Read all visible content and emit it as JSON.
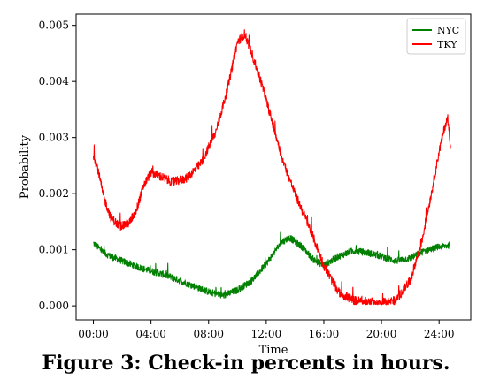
{
  "caption": "Figure 3: Check-in percents in hours.",
  "chart_data": {
    "type": "line",
    "title": "",
    "xlabel": "Time",
    "ylabel": "Probability",
    "x_tick_labels": [
      "00:00",
      "04:00",
      "08:00",
      "12:00",
      "16:00",
      "20:00",
      "24:00"
    ],
    "x_tick_values": [
      0,
      4,
      8,
      12,
      16,
      20,
      24
    ],
    "xlim": [
      -1.2,
      26.2
    ],
    "y_tick_labels": [
      "0.000",
      "0.001",
      "0.002",
      "0.003",
      "0.004",
      "0.005"
    ],
    "y_tick_values": [
      0,
      0.001,
      0.002,
      0.003,
      0.004,
      0.005
    ],
    "ylim": [
      -0.00025,
      0.0052
    ],
    "grid": false,
    "legend_position": "top-right",
    "series": [
      {
        "name": "NYC",
        "color": "#008000",
        "noise": 6e-05,
        "points": [
          [
            0,
            0.00112
          ],
          [
            0.3,
            0.00105
          ],
          [
            0.7,
            0.00095
          ],
          [
            1.2,
            0.00088
          ],
          [
            1.8,
            0.00082
          ],
          [
            2.5,
            0.00075
          ],
          [
            3.2,
            0.00068
          ],
          [
            4.0,
            0.00062
          ],
          [
            5.0,
            0.00055
          ],
          [
            6.0,
            0.00045
          ],
          [
            7.0,
            0.00035
          ],
          [
            8.0,
            0.00025
          ],
          [
            9.0,
            0.00018
          ],
          [
            10.0,
            0.00028
          ],
          [
            11.0,
            0.00045
          ],
          [
            12.0,
            0.00075
          ],
          [
            13.0,
            0.00112
          ],
          [
            13.6,
            0.00122
          ],
          [
            14.5,
            0.00105
          ],
          [
            15.3,
            0.00082
          ],
          [
            16.0,
            0.00072
          ],
          [
            17.0,
            0.00088
          ],
          [
            18.0,
            0.00098
          ],
          [
            19.0,
            0.00095
          ],
          [
            20.0,
            0.00088
          ],
          [
            21.0,
            0.0008
          ],
          [
            22.0,
            0.00085
          ],
          [
            23.0,
            0.00098
          ],
          [
            24.0,
            0.00105
          ],
          [
            24.7,
            0.00108
          ]
        ]
      },
      {
        "name": "TKY",
        "color": "#ff0000",
        "noise": 8e-05,
        "points": [
          [
            0,
            0.0027
          ],
          [
            0.3,
            0.00245
          ],
          [
            0.7,
            0.00195
          ],
          [
            1.2,
            0.00158
          ],
          [
            1.8,
            0.00142
          ],
          [
            2.5,
            0.00148
          ],
          [
            3.0,
            0.00172
          ],
          [
            3.5,
            0.00215
          ],
          [
            4.0,
            0.00238
          ],
          [
            4.7,
            0.0023
          ],
          [
            5.5,
            0.0022
          ],
          [
            6.5,
            0.00228
          ],
          [
            7.5,
            0.00255
          ],
          [
            8.5,
            0.0031
          ],
          [
            9.3,
            0.00385
          ],
          [
            10.0,
            0.0047
          ],
          [
            10.5,
            0.00485
          ],
          [
            11.0,
            0.0045
          ],
          [
            11.8,
            0.00385
          ],
          [
            12.5,
            0.0032
          ],
          [
            13.2,
            0.00255
          ],
          [
            14.0,
            0.002
          ],
          [
            15.0,
            0.0014
          ],
          [
            16.0,
            0.00072
          ],
          [
            17.0,
            0.00025
          ],
          [
            18.0,
            0.0001
          ],
          [
            19.0,
            7e-05
          ],
          [
            20.0,
            5e-05
          ],
          [
            21.0,
            0.0001
          ],
          [
            22.0,
            0.00045
          ],
          [
            22.8,
            0.00115
          ],
          [
            23.5,
            0.00205
          ],
          [
            24.0,
            0.00275
          ],
          [
            24.4,
            0.0032
          ],
          [
            24.6,
            0.00335
          ],
          [
            24.8,
            0.00285
          ]
        ]
      }
    ]
  }
}
